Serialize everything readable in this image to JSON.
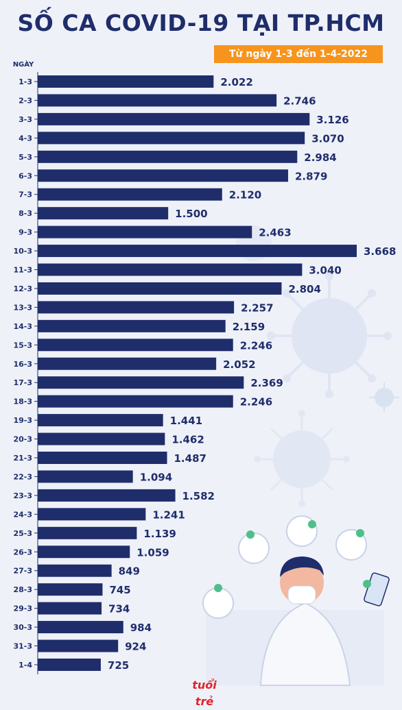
{
  "header": {
    "title": "SỐ CA COVID-19 TẠI TP.HCM",
    "subtitle": "Từ ngày 1-3 đến 1-4-2022"
  },
  "brand": {
    "logo_text": "tuổi trẻ"
  },
  "colors": {
    "bar": "#1f2d6b",
    "accent": "#f7941d",
    "label": "#1f2d6b",
    "logo": "#e0232a"
  },
  "chart_data": {
    "type": "bar",
    "orientation": "horizontal",
    "title": "SỐ CA COVID-19 TẠI TP.HCM",
    "subtitle": "Từ ngày 1-3 đến 1-4-2022",
    "ylabel": "NGÀY",
    "xlabel": "",
    "categories": [
      "1-3",
      "2-3",
      "3-3",
      "4-3",
      "5-3",
      "6-3",
      "7-3",
      "8-3",
      "9-3",
      "10-3",
      "11-3",
      "12-3",
      "13-3",
      "14-3",
      "15-3",
      "16-3",
      "17-3",
      "18-3",
      "19-3",
      "20-3",
      "21-3",
      "22-3",
      "23-3",
      "24-3",
      "25-3",
      "26-3",
      "27-3",
      "28-3",
      "29-3",
      "30-3",
      "31-3",
      "1-4"
    ],
    "values": [
      2022,
      2746,
      3126,
      3070,
      2984,
      2879,
      2120,
      1500,
      2463,
      3668,
      3040,
      2804,
      2257,
      2159,
      2246,
      2052,
      2369,
      2246,
      1441,
      1462,
      1487,
      1094,
      1582,
      1241,
      1139,
      1059,
      849,
      745,
      734,
      984,
      924,
      725
    ],
    "value_labels": [
      "2.022",
      "2.746",
      "3.126",
      "3.070",
      "2.984",
      "2.879",
      "2.120",
      "1.500",
      "2.463",
      "3.668",
      "3.040",
      "2.804",
      "2.257",
      "2.159",
      "2.246",
      "2.052",
      "2.369",
      "2.246",
      "1.441",
      "1.462",
      "1.487",
      "1.094",
      "1.582",
      "1.241",
      "1.139",
      "1.059",
      "849",
      "745",
      "734",
      "984",
      "924",
      "725"
    ],
    "grid": false,
    "legend": "none"
  }
}
